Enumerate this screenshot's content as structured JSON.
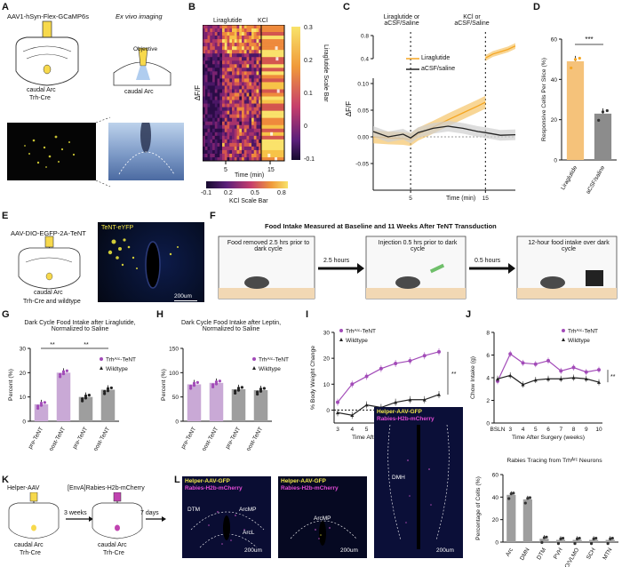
{
  "panels": {
    "A": {
      "letter": "A",
      "construct": "AAV1-hSyn-Flex-GCaMP6s",
      "region": "caudal Arc",
      "mouse": "Trh-Cre",
      "imaging_title": "Ex vivo imaging",
      "objective": "Objective",
      "imaging_region": "caudal Arc"
    },
    "B": {
      "letter": "B",
      "ylabel": "ΔF/F",
      "stim1": "Liraglutide",
      "stim2": "KCl",
      "xlabel": "Time (min)",
      "xticks": [
        "5",
        "15"
      ],
      "right_scale_title": "Liraglutide Scale Bar",
      "right_scale_ticks": [
        "0.3",
        "0.2",
        "0.1",
        "0",
        "-0.1"
      ],
      "bottom_scale_title": "KCl Scale Bar",
      "bottom_scale_ticks": [
        "-0.1",
        "0.2",
        "0.5",
        "0.8"
      ]
    },
    "C": {
      "letter": "C",
      "event1": "Liraglutide or aCSF/Saline",
      "event2": "KCl or aCSF/Saline",
      "ylabel": "ΔF/F",
      "xlabel": "Time (min)",
      "legend": [
        "Liraglutide",
        "aCSF/saline"
      ]
    },
    "D": {
      "letter": "D",
      "significance": "***"
    },
    "E": {
      "letter": "E",
      "construct": "AAV-DIO-EGFP-2A-TeNT",
      "region": "caudal Arc",
      "mouse": "Trh-Cre and wildtype",
      "image_label": "TeNT-eYFP",
      "scalebar": "200um"
    },
    "F": {
      "letter": "F",
      "title": "Food Intake Measured at Baseline and 11 Weeks After TeNT Transduction",
      "box1": "Food removed 2.5 hrs prior to dark cycle",
      "arrow1": "2.5 hours",
      "box2": "Injection 0.5 hrs prior to dark cycle",
      "arrow2": "0.5 hours",
      "box3": "12-hour food intake over dark cycle"
    },
    "G": {
      "letter": "G",
      "title": "Dark Cycle Food Intake after Liraglutide, Normalized to Saline",
      "sig1": "**",
      "sig2": "**"
    },
    "H": {
      "letter": "H",
      "title": "Dark Cycle Food Intake after Leptin, Normalized to Saline"
    },
    "I": {
      "letter": "I",
      "sig": "**"
    },
    "J": {
      "letter": "J",
      "sig": "**"
    },
    "K": {
      "letter": "K",
      "virus1": "Helper-AAV",
      "virus2": "[EnvA]Rabies-H2b-mCherry",
      "wait1": "3 weeks",
      "wait2": "7 days",
      "region": "caudal Arc",
      "mouse": "Trh-Cre"
    },
    "L": {
      "letter": "L",
      "green_label": "Helper-AAV-GFP",
      "magenta_label": "Rabies-H2b-mCherry",
      "img1_regions": [
        "DTM",
        "ArcMP",
        "ArcL"
      ],
      "img2_regions": [
        "ArcMP"
      ],
      "img3_regions": [
        "DMH"
      ],
      "scalebar": "200um"
    }
  },
  "chart_data": [
    {
      "type": "heatmap",
      "panel": "B",
      "title": "",
      "xlabel": "Time (min)",
      "ylabel": "ΔF/F",
      "xticks": [
        5,
        15
      ],
      "colorbars": [
        {
          "name": "Liraglutide Scale Bar",
          "range": [
            -0.1,
            0.3
          ]
        },
        {
          "name": "KCl Scale Bar",
          "range": [
            -0.1,
            0.8
          ]
        }
      ]
    },
    {
      "type": "line",
      "panel": "C",
      "xlabel": "Time (min)",
      "ylabel": "ΔF/F",
      "xticks": [
        5,
        15
      ],
      "yticks": [
        -0.05,
        0.0,
        0.05,
        0.1,
        0.4,
        0.8
      ],
      "y_axis_broken": true,
      "series": [
        {
          "name": "Liraglutide",
          "color": "#F5A623",
          "x": [
            0,
            2,
            4,
            5,
            6,
            8,
            10,
            12,
            14,
            15
          ],
          "y": [
            0.0,
            -0.002,
            -0.003,
            -0.005,
            0.005,
            0.018,
            0.032,
            0.045,
            0.058,
            0.065
          ],
          "after_kcl": {
            "x": [
              15,
              16,
              18,
              19
            ],
            "y": [
              0.41,
              0.48,
              0.56,
              0.62
            ]
          }
        },
        {
          "name": "aCSF/saline",
          "color": "#222222",
          "x": [
            0,
            2,
            4,
            5,
            6,
            8,
            10,
            12,
            14,
            15,
            17,
            19
          ],
          "y": [
            0.01,
            0.0,
            0.005,
            -0.002,
            0.008,
            0.016,
            0.02,
            0.016,
            0.01,
            0.008,
            0.003,
            0.004
          ]
        }
      ]
    },
    {
      "type": "bar",
      "panel": "D",
      "ylabel": "Responsive Cells Per Slice (%)",
      "categories": [
        "Liraglutide",
        "aCSF/saline"
      ],
      "values": [
        49,
        23
      ],
      "colors": [
        "#F5C27A",
        "#8C8C8C"
      ],
      "ylim": [
        0,
        60
      ],
      "yticks": [
        0,
        20,
        40,
        60
      ]
    },
    {
      "type": "bar",
      "panel": "G",
      "ylabel": "Percent (%)",
      "categories": [
        "pre-TeNT",
        "post-TeNT",
        "pre-TeNT",
        "post-TeNT"
      ],
      "groups": [
        "Trh^Arc-TeNT",
        "Trh^Arc-TeNT",
        "Wildtype",
        "Wildtype"
      ],
      "values": [
        7,
        20,
        10,
        13
      ],
      "colors": [
        "#C9A9D6",
        "#C9A9D6",
        "#9E9E9E",
        "#9E9E9E"
      ],
      "ylim": [
        0,
        30
      ],
      "yticks": [
        0,
        10,
        20,
        30
      ],
      "legend": [
        "Trh^Arc-TeNT",
        "Wildtype"
      ]
    },
    {
      "type": "bar",
      "panel": "H",
      "ylabel": "Percent (%)",
      "categories": [
        "pre-TeNT",
        "post-TeNT",
        "pre-TeNT",
        "post-TeNT"
      ],
      "groups": [
        "Trh^Arc-TeNT",
        "Trh^Arc-TeNT",
        "Wildtype",
        "Wildtype"
      ],
      "values": [
        76,
        79,
        66,
        64
      ],
      "colors": [
        "#C9A9D6",
        "#C9A9D6",
        "#9E9E9E",
        "#9E9E9E"
      ],
      "ylim": [
        0,
        150
      ],
      "yticks": [
        0,
        50,
        100,
        150
      ],
      "legend": [
        "Trh^Arc-TeNT",
        "Wildtype"
      ]
    },
    {
      "type": "line",
      "panel": "I",
      "xlabel": "Time After Surgery (weeks)",
      "ylabel": "% Body Weight Change",
      "x": [
        3,
        4,
        5,
        6,
        7,
        8,
        9,
        10
      ],
      "ylim": [
        -5,
        30
      ],
      "yticks": [
        0,
        10,
        20,
        30
      ],
      "series": [
        {
          "name": "Trh^Arc-TeNT",
          "color": "#A24BB8",
          "values": [
            3,
            10,
            13,
            16,
            18,
            19,
            21,
            22.5
          ]
        },
        {
          "name": "Wildtype",
          "color": "#222222",
          "values": [
            -1,
            -2,
            2,
            1,
            3,
            4,
            4,
            6
          ]
        }
      ]
    },
    {
      "type": "line",
      "panel": "J",
      "xlabel": "Time After Surgery (weeks)",
      "ylabel": "Chow Intake (g)",
      "x": [
        "BSLN",
        "3",
        "4",
        "5",
        "6",
        "7",
        "8",
        "9",
        "10"
      ],
      "ylim": [
        0,
        8
      ],
      "yticks": [
        0,
        2,
        4,
        6,
        8
      ],
      "series": [
        {
          "name": "Trh^Arc-TeNT",
          "color": "#A24BB8",
          "values": [
            3.7,
            6.1,
            5.3,
            5.2,
            5.5,
            4.6,
            4.9,
            4.5,
            4.7
          ]
        },
        {
          "name": "Wildtype",
          "color": "#222222",
          "values": [
            3.9,
            4.2,
            3.4,
            3.8,
            3.9,
            3.9,
            4.0,
            3.9,
            3.6
          ]
        }
      ]
    },
    {
      "type": "bar",
      "panel": "L-bar",
      "title": "Rabies Tracing from Trh^Arc Neurons",
      "ylabel": "Percentage of Cells (%)",
      "categories": [
        "Arc",
        "DMN",
        "DTM",
        "PVH",
        "VLPO/VLMO",
        "SCH",
        "MTN"
      ],
      "values": [
        42,
        38,
        3,
        2,
        2,
        2,
        2
      ],
      "ylim": [
        0,
        60
      ],
      "yticks": [
        0,
        20,
        40,
        60
      ],
      "color": "#9E9E9E"
    }
  ]
}
